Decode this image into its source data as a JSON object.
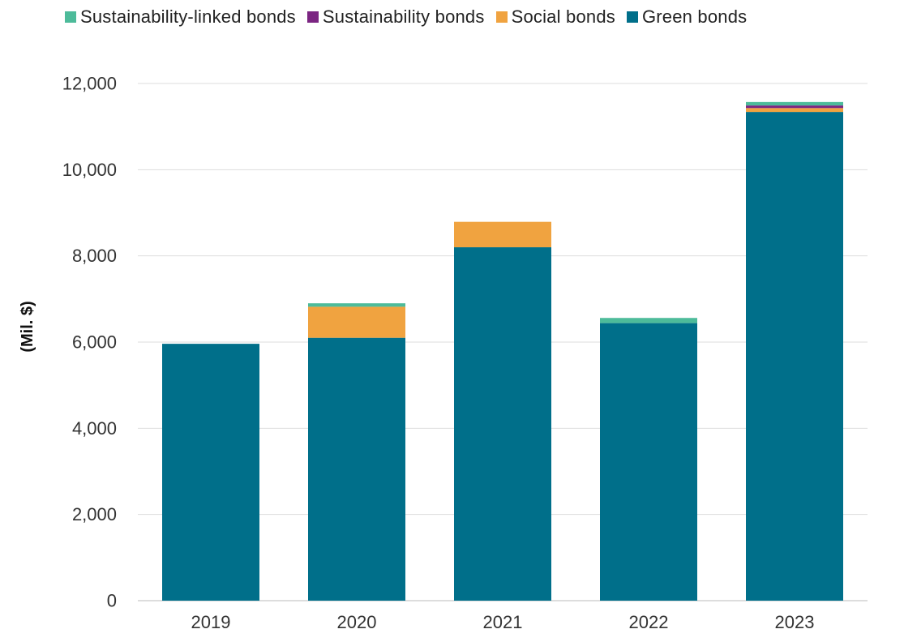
{
  "chart_data": {
    "type": "bar",
    "stacked": true,
    "title": "",
    "xlabel": "",
    "ylabel": "(Mil. $)",
    "categories": [
      "2019",
      "2020",
      "2021",
      "2022",
      "2023"
    ],
    "ylim": [
      0,
      12000
    ],
    "yticks": [
      0,
      2000,
      4000,
      6000,
      8000,
      10000,
      12000
    ],
    "ytick_labels": [
      "0",
      "2,000",
      "4,000",
      "6,000",
      "8,000",
      "10,000",
      "12,000"
    ],
    "grid": true,
    "legend_position": "top",
    "series": [
      {
        "name": "Green bonds",
        "color": "#006f8a",
        "values": [
          5960,
          6100,
          8200,
          6440,
          11340
        ]
      },
      {
        "name": "Social bonds",
        "color": "#f0a340",
        "values": [
          0,
          720,
          590,
          0,
          90
        ]
      },
      {
        "name": "Sustainability bonds",
        "color": "#7b2582",
        "values": [
          0,
          0,
          0,
          0,
          60
        ]
      },
      {
        "name": "Sustainability-linked bonds",
        "color": "#4dbb9a",
        "values": [
          0,
          80,
          0,
          120,
          80
        ]
      }
    ],
    "legend_order": [
      "Sustainability-linked bonds",
      "Sustainability bonds",
      "Social bonds",
      "Green bonds"
    ]
  }
}
